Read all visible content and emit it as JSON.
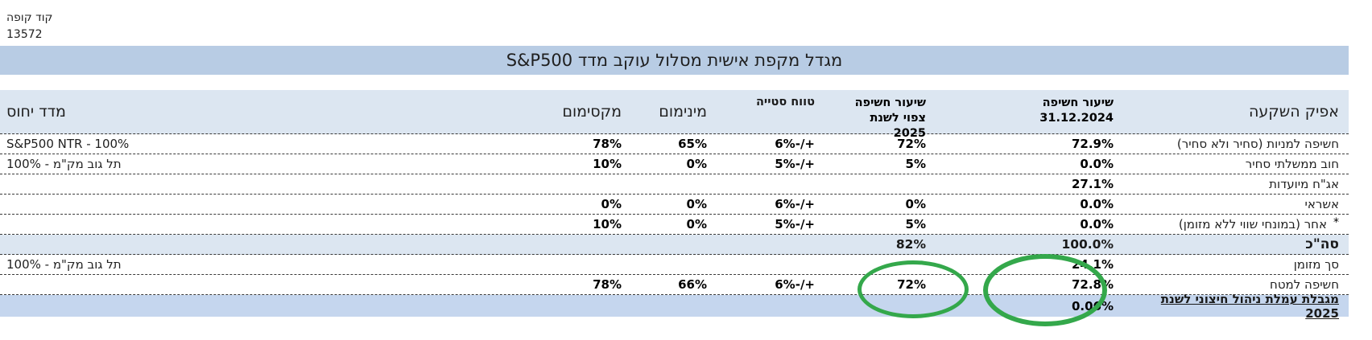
{
  "meta": {
    "code_label": "קוד קופה",
    "code_value": "13572"
  },
  "title": "מגדל מקפת אישית מסלול עוקב מדד S&P500",
  "table": {
    "headers": {
      "channel": "אפיק השקעה",
      "exposure_current_line1": "שיעור חשיפה",
      "exposure_current_line2": "31.12.2024",
      "exposure_expected_line1": "שיעור חשיפה",
      "exposure_expected_line2": "צפוי לשנת 2025",
      "deviation": "טווח סטייה",
      "minimum": "מינימום",
      "maximum": "מקסימום",
      "benchmark": "מדד יחוס"
    },
    "rows": [
      {
        "label": "חשיפה למניות (סחיר ולא סחיר)",
        "current": "72.9%",
        "expected": "72%",
        "deviation": "+/-6%",
        "min": "65%",
        "max": "78%",
        "benchmark": "S&P500 NTR - 100%"
      },
      {
        "label": "חוב ממשלתי סחיר",
        "current": "0.0%",
        "expected": "5%",
        "deviation": "+/-5%",
        "min": "0%",
        "max": "10%",
        "benchmark": "תל גוב מק\"מ - 100%"
      },
      {
        "label": "אג\"ח מיועדות",
        "current": "27.1%",
        "expected": "",
        "deviation": "",
        "min": "",
        "max": "",
        "benchmark": ""
      },
      {
        "label": "אשראי",
        "current": "0.0%",
        "expected": "0%",
        "deviation": "+/-6%",
        "min": "0%",
        "max": "0%",
        "benchmark": ""
      },
      {
        "label": "אחר (במונחי שווי ללא מזומן)",
        "asterisk": "*",
        "current": "0.0%",
        "expected": "5%",
        "deviation": "+/-5%",
        "min": "0%",
        "max": "10%",
        "benchmark": ""
      },
      {
        "label": "סה\"כ",
        "current": "100.0%",
        "expected": "82%",
        "deviation": "",
        "min": "",
        "max": "",
        "benchmark": ""
      },
      {
        "label": "סך מזומן",
        "current": "24.1%",
        "expected": "",
        "deviation": "",
        "min": "",
        "max": "",
        "benchmark": "תל גוב מק\"מ - 100%"
      },
      {
        "label": "חשיפה למטח",
        "current": "72.8%",
        "expected": "72%",
        "deviation": "+/-6%",
        "min": "66%",
        "max": "78%",
        "benchmark": ""
      },
      {
        "label": "מגבלת עמלת ניהול חיצוני לשנת 2025",
        "current": "0.06%",
        "expected": "",
        "deviation": "",
        "min": "",
        "max": "",
        "benchmark": ""
      }
    ]
  },
  "selection": {
    "row_label": "אג\"ח מיועדות",
    "column": "מינימום"
  },
  "annotations": {
    "circled_values": [
      "72%",
      "24.1%",
      "72.8%",
      "0.06%"
    ],
    "circle_color": "#34a84b",
    "selection_border_color": "#1e7346"
  },
  "colors": {
    "title_bar_bg": "#b8cce4",
    "header_row_bg": "#dce6f1",
    "total_row_bg": "#dce6f1",
    "limit_row_bg": "#c5d6ee"
  }
}
